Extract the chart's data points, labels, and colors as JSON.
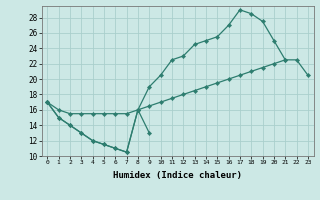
{
  "xlabel": "Humidex (Indice chaleur)",
  "bg_color": "#cce8e5",
  "line_color": "#2d7d6f",
  "grid_color": "#aacfcc",
  "xlim": [
    -0.5,
    23.5
  ],
  "ylim": [
    10,
    29.5
  ],
  "xticks": [
    0,
    1,
    2,
    3,
    4,
    5,
    6,
    7,
    8,
    9,
    10,
    11,
    12,
    13,
    14,
    15,
    16,
    17,
    18,
    19,
    20,
    21,
    22,
    23
  ],
  "yticks": [
    10,
    12,
    14,
    16,
    18,
    20,
    22,
    24,
    26,
    28
  ],
  "series": [
    {
      "x": [
        0,
        1,
        2,
        3,
        4,
        5,
        6,
        7,
        8,
        9
      ],
      "y": [
        17,
        15,
        14,
        13,
        12,
        11.5,
        11,
        10.5,
        16,
        13
      ]
    },
    {
      "x": [
        0,
        1,
        2,
        3,
        4,
        5,
        6,
        7,
        8,
        9,
        10,
        11,
        12,
        13,
        14,
        15,
        16,
        17,
        18,
        19,
        20,
        21
      ],
      "y": [
        17,
        15,
        14,
        13,
        12,
        11.5,
        11,
        10.5,
        16,
        19,
        20.5,
        22.5,
        23,
        24.5,
        25,
        25.5,
        27,
        29,
        28.5,
        27.5,
        25,
        22.5
      ]
    },
    {
      "x": [
        0,
        1,
        2,
        3,
        4,
        5,
        6,
        7,
        8,
        9,
        10,
        11,
        12,
        13,
        14,
        15,
        16,
        17,
        18,
        19,
        20,
        21,
        22,
        23
      ],
      "y": [
        17,
        16,
        15.5,
        15.5,
        15.5,
        15.5,
        15.5,
        15.5,
        16,
        16.5,
        17,
        17.5,
        18,
        18.5,
        19,
        19.5,
        20,
        20.5,
        21,
        21.5,
        22,
        22.5,
        22.5,
        20.5
      ]
    }
  ]
}
